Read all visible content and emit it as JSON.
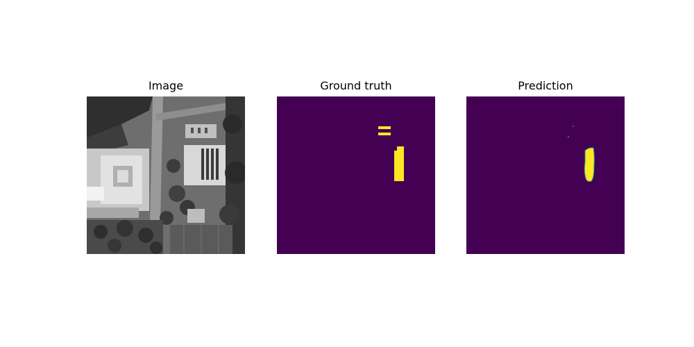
{
  "panels": [
    {
      "title": "Image"
    },
    {
      "title": "Ground truth"
    },
    {
      "title": "Prediction"
    }
  ],
  "colors": {
    "background_class": "#440154",
    "foreground_class": "#fde725",
    "edge_class": "#21918c"
  }
}
